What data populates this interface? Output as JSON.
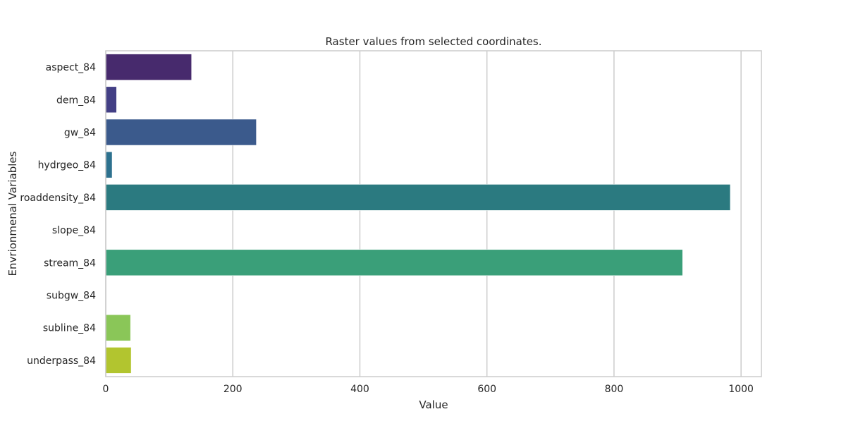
{
  "chart_data": {
    "type": "bar",
    "orientation": "horizontal",
    "title": "Raster values from selected coordinates.",
    "xlabel": "Value",
    "ylabel": "Envrionmenal Variables",
    "xlim": [
      0,
      1032
    ],
    "xticks": [
      0,
      200,
      400,
      600,
      800,
      1000
    ],
    "grid": true,
    "categories": [
      "aspect_84",
      "dem_84",
      "gw_84",
      "hydrgeo_84",
      "roaddensity_84",
      "slope_84",
      "stream_84",
      "subgw_84",
      "subline_84",
      "underpass_84"
    ],
    "values": [
      135,
      17,
      237,
      10,
      983,
      0,
      908,
      0,
      39,
      40
    ],
    "colors": [
      "#472a6d",
      "#433f85",
      "#3b5a8c",
      "#2d718e",
      "#2b7a80",
      "#277f8e",
      "#3a9f79",
      "#5cc26a",
      "#8ac658",
      "#b2c52f"
    ]
  }
}
